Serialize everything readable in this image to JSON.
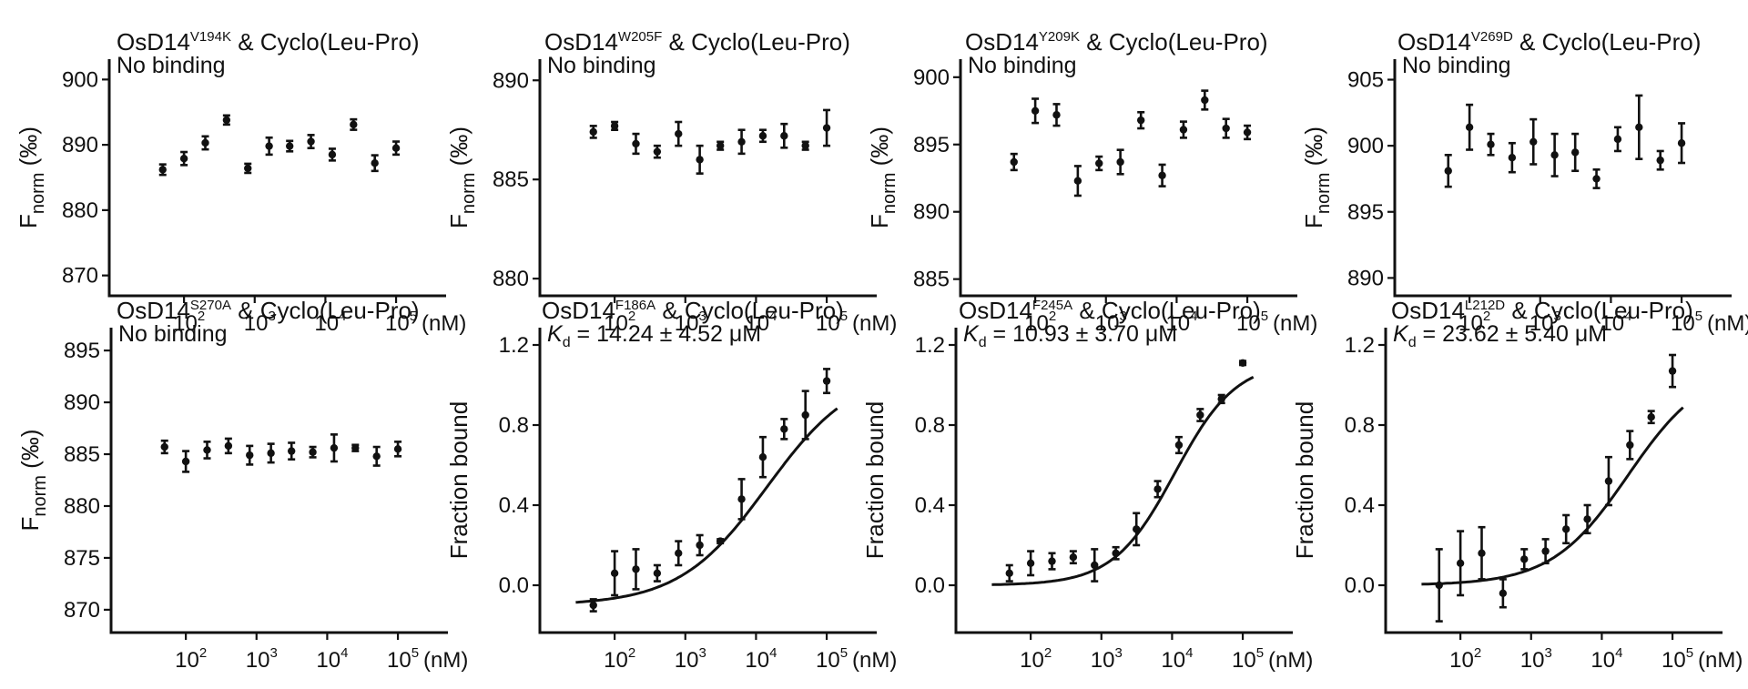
{
  "chart_data": [
    {
      "type": "scatter",
      "protein": "OsD14",
      "mutation": "V194K",
      "ligand": " & Cyclo(Leu-Pro)",
      "note": "No binding",
      "ylabel": "F",
      "ylabel_sub": "norm",
      "ylabel_suffix": " (‰)",
      "ylim": [
        868,
        902
      ],
      "yticks": [
        870,
        880,
        890,
        900
      ],
      "xunit": "(nM)",
      "x": [
        50,
        100,
        200,
        400,
        800,
        1600,
        3125,
        6250,
        12500,
        25000,
        50000,
        100000
      ],
      "y": [
        886.2,
        887.9,
        890.3,
        893.8,
        886.4,
        889.8,
        889.8,
        890.5,
        888.5,
        893.1,
        887.2,
        889.5
      ],
      "err": [
        0.8,
        1.0,
        1.0,
        0.7,
        0.7,
        1.3,
        0.8,
        1.0,
        0.9,
        0.8,
        1.2,
        1.0
      ]
    },
    {
      "type": "scatter",
      "protein": "OsD14",
      "mutation": "W205F",
      "ligand": " & Cyclo(Leu-Pro)",
      "note": "No binding",
      "ylabel": "F",
      "ylabel_sub": "norm",
      "ylabel_suffix": " (‰)",
      "ylim": [
        879.5,
        890.7
      ],
      "yticks": [
        880,
        885,
        890
      ],
      "xunit": "(nM)",
      "x": [
        50,
        100,
        200,
        400,
        800,
        1600,
        3125,
        6250,
        12500,
        25000,
        50000,
        100000
      ],
      "y": [
        887.4,
        887.7,
        886.8,
        886.4,
        887.3,
        886.0,
        886.7,
        886.9,
        887.2,
        887.2,
        886.7,
        887.6
      ],
      "err": [
        0.3,
        0.2,
        0.5,
        0.3,
        0.6,
        0.7,
        0.2,
        0.6,
        0.3,
        0.6,
        0.2,
        0.9
      ]
    },
    {
      "type": "scatter",
      "protein": "OsD14",
      "mutation": "Y209K",
      "ligand": " & Cyclo(Leu-Pro)",
      "note": "No binding",
      "ylabel": "F",
      "ylabel_sub": "norm",
      "ylabel_suffix": " (‰)",
      "ylim": [
        884.3,
        900.8
      ],
      "yticks": [
        885,
        890,
        895,
        900
      ],
      "xunit": "(nM)",
      "x": [
        50,
        100,
        200,
        400,
        800,
        1600,
        3125,
        6250,
        12500,
        25000,
        50000,
        100000
      ],
      "y": [
        893.7,
        897.5,
        897.2,
        892.3,
        893.6,
        893.7,
        896.8,
        892.7,
        896.1,
        898.3,
        896.2,
        895.9
      ],
      "err": [
        0.6,
        0.9,
        0.8,
        1.1,
        0.5,
        0.9,
        0.6,
        0.8,
        0.6,
        0.7,
        0.7,
        0.5
      ]
    },
    {
      "type": "scatter",
      "protein": "OsD14",
      "mutation": "V269D",
      "ligand": " & Cyclo(Leu-Pro)",
      "note": "No binding",
      "ylabel": "F",
      "ylabel_sub": "norm",
      "ylabel_suffix": " (‰)",
      "ylim": [
        889.2,
        906.0
      ],
      "yticks": [
        890,
        895,
        900,
        905
      ],
      "xunit": "(nM)",
      "x": [
        50,
        100,
        200,
        400,
        800,
        1600,
        3125,
        6250,
        12500,
        25000,
        50000,
        100000
      ],
      "y": [
        898.1,
        901.4,
        900.1,
        899.1,
        900.3,
        899.3,
        899.5,
        897.5,
        900.5,
        901.4,
        898.9,
        900.2
      ],
      "err": [
        1.2,
        1.7,
        0.8,
        1.1,
        1.7,
        1.6,
        1.4,
        0.7,
        0.9,
        2.4,
        0.7,
        1.5
      ]
    },
    {
      "type": "scatter",
      "protein": "OsD14",
      "mutation": "S270A",
      "ligand": " & Cyclo(Leu-Pro)",
      "note": "No binding",
      "ylabel": "F",
      "ylabel_sub": "norm",
      "ylabel_suffix": " (‰)",
      "ylim": [
        868.5,
        896.5
      ],
      "yticks": [
        870,
        875,
        880,
        885,
        890,
        895
      ],
      "xunit": "(nM)",
      "x": [
        50,
        100,
        200,
        400,
        800,
        1600,
        3125,
        6250,
        12500,
        25000,
        50000,
        100000
      ],
      "y": [
        885.7,
        884.3,
        885.4,
        885.8,
        884.9,
        885.1,
        885.3,
        885.2,
        885.6,
        885.6,
        884.8,
        885.5
      ],
      "err": [
        0.6,
        1.0,
        0.8,
        0.7,
        0.9,
        0.9,
        0.8,
        0.5,
        1.3,
        0.3,
        0.9,
        0.7
      ]
    },
    {
      "type": "line",
      "protein": "OsD14",
      "mutation": "F186A",
      "ligand": " & Cyclo(Leu-Pro)",
      "note": "= 14.24 ± 4.52 μM",
      "kd_symbol": "K",
      "kd_sub": "d",
      "ylabel": "Fraction bound",
      "ylim": [
        -0.2,
        1.25
      ],
      "yticks": [
        0.0,
        0.4,
        0.8,
        1.2
      ],
      "xunit": "(nM)",
      "x": [
        50,
        100,
        200,
        400,
        800,
        1600,
        3125,
        6250,
        12500,
        25000,
        50000,
        100000
      ],
      "y": [
        -0.1,
        0.06,
        0.08,
        0.06,
        0.16,
        0.2,
        0.22,
        0.43,
        0.64,
        0.78,
        0.85,
        1.02
      ],
      "err": [
        0.03,
        0.11,
        0.1,
        0.04,
        0.06,
        0.05,
        0.01,
        0.1,
        0.1,
        0.05,
        0.12,
        0.06
      ],
      "fit": {
        "kd_nM": 14240,
        "bottom": -0.1,
        "top": 1.08,
        "hill": 0.7
      }
    },
    {
      "type": "line",
      "protein": "OsD14",
      "mutation": "F245A",
      "ligand": " & Cyclo(Leu-Pro)",
      "note": "= 10.93 ± 3.70 μM",
      "kd_symbol": "K",
      "kd_sub": "d",
      "ylabel": "Fraction bound",
      "ylim": [
        -0.2,
        1.25
      ],
      "yticks": [
        0.0,
        0.4,
        0.8,
        1.2
      ],
      "xunit": "(nM)",
      "x": [
        50,
        100,
        200,
        400,
        800,
        1600,
        3125,
        6250,
        12500,
        25000,
        50000,
        100000
      ],
      "y": [
        0.06,
        0.11,
        0.12,
        0.14,
        0.1,
        0.16,
        0.28,
        0.48,
        0.7,
        0.85,
        0.93,
        1.11
      ],
      "err": [
        0.04,
        0.06,
        0.04,
        0.03,
        0.08,
        0.03,
        0.08,
        0.04,
        0.04,
        0.03,
        0.02,
        0.01
      ],
      "fit": {
        "kd_nM": 10930,
        "bottom": 0.0,
        "top": 1.12,
        "hill": 1.0
      }
    },
    {
      "type": "line",
      "protein": "OsD14",
      "mutation": "L212D",
      "ligand": " & Cyclo(Leu-Pro)",
      "note": "= 23.62 ± 5.40 μM",
      "kd_symbol": "K",
      "kd_sub": "d",
      "ylabel": "Fraction bound",
      "ylim": [
        -0.2,
        1.25
      ],
      "yticks": [
        0.0,
        0.4,
        0.8,
        1.2
      ],
      "xunit": "(nM)",
      "x": [
        50,
        100,
        200,
        400,
        800,
        1600,
        3125,
        6250,
        12500,
        25000,
        50000,
        100000
      ],
      "y": [
        0.0,
        0.11,
        0.16,
        -0.04,
        0.13,
        0.17,
        0.28,
        0.33,
        0.52,
        0.7,
        0.84,
        1.07
      ],
      "err": [
        0.18,
        0.16,
        0.13,
        0.07,
        0.05,
        0.06,
        0.07,
        0.07,
        0.12,
        0.07,
        0.03,
        0.08
      ],
      "fit": {
        "kd_nM": 23620,
        "bottom": 0.0,
        "top": 1.1,
        "hill": 0.8
      }
    }
  ]
}
